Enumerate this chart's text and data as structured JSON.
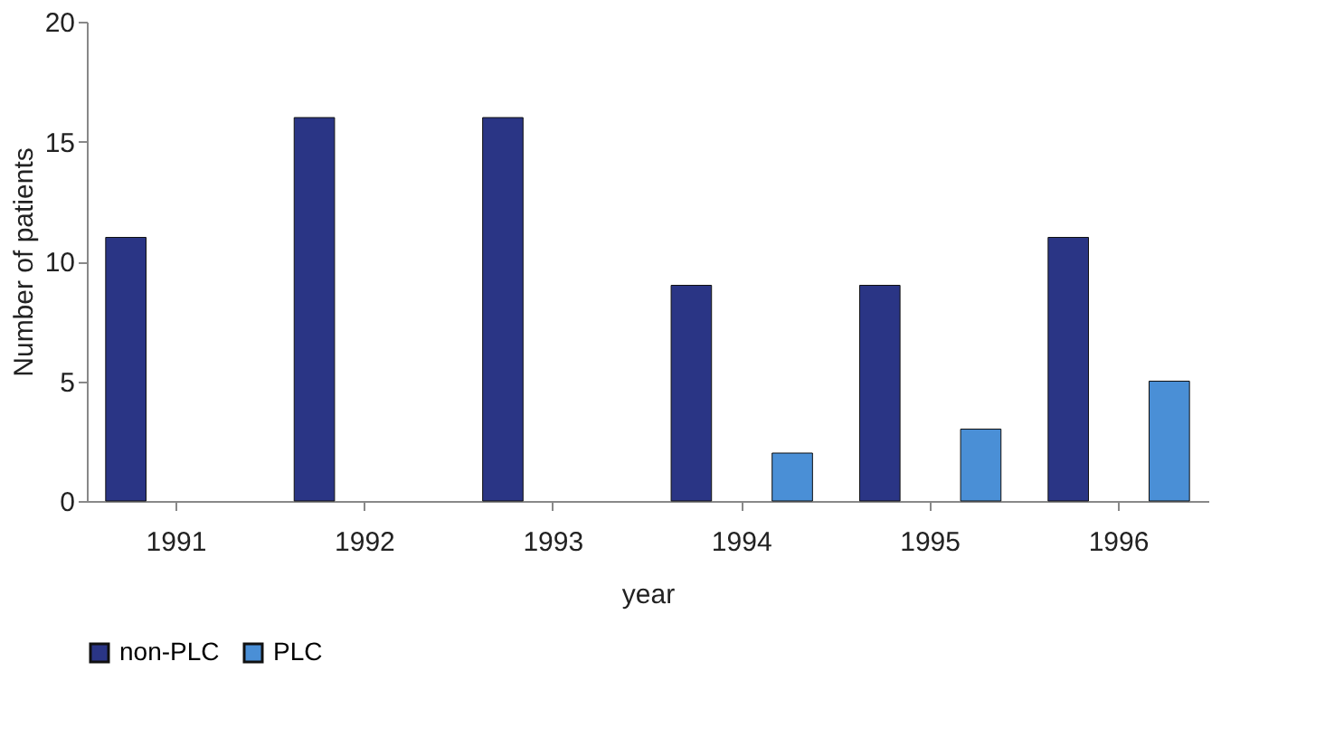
{
  "chart_data": {
    "type": "bar",
    "xlabel": "year",
    "ylabel": "Number of patients",
    "categories": [
      "1991",
      "1992",
      "1993",
      "1994",
      "1995",
      "1996"
    ],
    "series": [
      {
        "name": "non-PLC",
        "color": "#2a3585",
        "values": [
          11,
          16,
          16,
          9,
          9,
          11
        ]
      },
      {
        "name": "PLC",
        "color": "#4a8fd6",
        "values": [
          null,
          null,
          null,
          2,
          3,
          5
        ]
      }
    ],
    "ylim": [
      0,
      20
    ],
    "yticks": [
      0,
      5,
      10,
      15,
      20
    ],
    "grid": false,
    "legend": "bottom"
  }
}
